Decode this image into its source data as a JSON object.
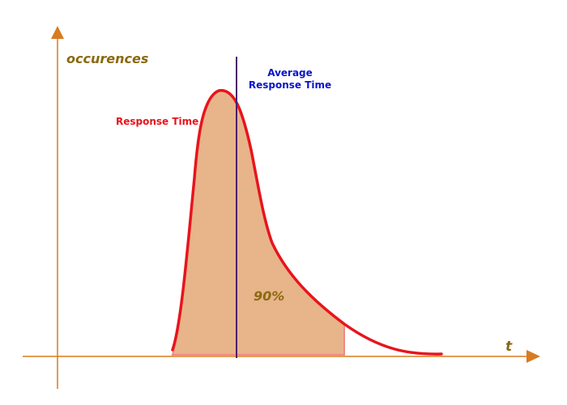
{
  "diagram": {
    "y_axis_label": "occurences",
    "x_axis_label": "t",
    "curve_label": "Response Time",
    "average_label_line1": "Average",
    "average_label_line2": "Response Time",
    "percentile_label": "90%"
  },
  "colors": {
    "axis": "#d97b1f",
    "axis_label": "#8a6a10",
    "curve": "#e8141c",
    "curve_label": "#e8141c",
    "fill": "#e8b48a",
    "average_line": "#4a1e6a",
    "average_label": "#0a16c8",
    "percentile_label": "#8a6a10"
  }
}
